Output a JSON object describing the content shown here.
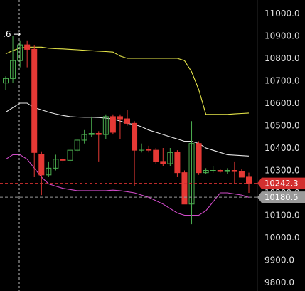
{
  "crosshair_label": ".6 →",
  "chart_data": {
    "type": "candlestick",
    "ylim": [
      9780,
      11080
    ],
    "y_ticks": [
      "11000.0",
      "10900.0",
      "10800.0",
      "10700.0",
      "10600.0",
      "10500.0",
      "10400.0",
      "10300.0",
      "10200.0",
      "10100.0",
      "10000.0",
      "9900.0",
      "9800.0"
    ],
    "y_tick_values": [
      11000,
      10900,
      10800,
      10700,
      10600,
      10500,
      10400,
      10300,
      10200,
      10100,
      10000,
      9900,
      9800
    ],
    "price_lines": [
      {
        "label": "10242.3",
        "value": 10242.3,
        "color": "#d32f2f",
        "style": "dashed"
      },
      {
        "label": "10180.5",
        "value": 10180.5,
        "color": "#9a9a9a",
        "style": "dashed"
      }
    ],
    "candles": [
      {
        "o": 10690,
        "h": 10720,
        "l": 10660,
        "c": 10710
      },
      {
        "o": 10710,
        "h": 10900,
        "l": 10690,
        "c": 10790
      },
      {
        "o": 10790,
        "h": 10880,
        "l": 10760,
        "c": 10860
      },
      {
        "o": 10860,
        "h": 10880,
        "l": 10760,
        "c": 10840
      },
      {
        "o": 10840,
        "h": 10860,
        "l": 10270,
        "c": 10380
      },
      {
        "o": 10370,
        "h": 10385,
        "l": 10190,
        "c": 10280
      },
      {
        "o": 10280,
        "h": 10340,
        "l": 10270,
        "c": 10310
      },
      {
        "o": 10310,
        "h": 10370,
        "l": 10300,
        "c": 10350
      },
      {
        "o": 10350,
        "h": 10360,
        "l": 10330,
        "c": 10345
      },
      {
        "o": 10345,
        "h": 10400,
        "l": 10330,
        "c": 10390
      },
      {
        "o": 10390,
        "h": 10440,
        "l": 10380,
        "c": 10435
      },
      {
        "o": 10435,
        "h": 10480,
        "l": 10420,
        "c": 10460
      },
      {
        "o": 10460,
        "h": 10540,
        "l": 10450,
        "c": 10465
      },
      {
        "o": 10465,
        "h": 10475,
        "l": 10340,
        "c": 10460
      },
      {
        "o": 10460,
        "h": 10550,
        "l": 10440,
        "c": 10540
      },
      {
        "o": 10540,
        "h": 10550,
        "l": 10460,
        "c": 10470
      },
      {
        "o": 10540,
        "h": 10550,
        "l": 10440,
        "c": 10530
      },
      {
        "o": 10530,
        "h": 10570,
        "l": 10500,
        "c": 10510
      },
      {
        "o": 10510,
        "h": 10520,
        "l": 10230,
        "c": 10390
      },
      {
        "o": 10390,
        "h": 10420,
        "l": 10380,
        "c": 10395
      },
      {
        "o": 10395,
        "h": 10410,
        "l": 10380,
        "c": 10390
      },
      {
        "o": 10390,
        "h": 10400,
        "l": 10330,
        "c": 10340
      },
      {
        "o": 10340,
        "h": 10400,
        "l": 10320,
        "c": 10330
      },
      {
        "o": 10330,
        "h": 10400,
        "l": 10320,
        "c": 10380
      },
      {
        "o": 10380,
        "h": 10390,
        "l": 10270,
        "c": 10290
      },
      {
        "o": 10290,
        "h": 10300,
        "l": 10150,
        "c": 10150
      },
      {
        "o": 10150,
        "h": 10520,
        "l": 10060,
        "c": 10420
      },
      {
        "o": 10420,
        "h": 10430,
        "l": 10280,
        "c": 10290
      },
      {
        "o": 10290,
        "h": 10310,
        "l": 10285,
        "c": 10300
      },
      {
        "o": 10300,
        "h": 10320,
        "l": 10290,
        "c": 10300
      },
      {
        "o": 10300,
        "h": 10305,
        "l": 10290,
        "c": 10295
      },
      {
        "o": 10295,
        "h": 10310,
        "l": 10285,
        "c": 10300
      },
      {
        "o": 10300,
        "h": 10340,
        "l": 10240,
        "c": 10295
      },
      {
        "o": 10295,
        "h": 10305,
        "l": 10280,
        "c": 10270
      },
      {
        "o": 10270,
        "h": 10290,
        "l": 10200,
        "c": 10242.3
      }
    ],
    "bands": {
      "upper": {
        "color": "#e8e84a",
        "values": [
          10820,
          10835,
          10845,
          10850,
          10850,
          10850,
          10845,
          10843,
          10842,
          10840,
          10838,
          10836,
          10834,
          10832,
          10830,
          10828,
          10810,
          10800,
          10800,
          10800,
          10800,
          10800,
          10800,
          10800,
          10800,
          10790,
          10740,
          10660,
          10550,
          10550,
          10550,
          10550,
          10552,
          10554,
          10556
        ]
      },
      "middle": {
        "color": "#e6e6e6",
        "values": [
          10560,
          10580,
          10600,
          10600,
          10580,
          10570,
          10560,
          10552,
          10545,
          10540,
          10538,
          10537,
          10537,
          10536,
          10533,
          10530,
          10520,
          10510,
          10505,
          10495,
          10480,
          10470,
          10460,
          10450,
          10440,
          10430,
          10430,
          10420,
          10400,
          10390,
          10380,
          10370,
          10368,
          10366,
          10364
        ]
      },
      "lower": {
        "color": "#d04ac8",
        "values": [
          10350,
          10370,
          10370,
          10350,
          10310,
          10270,
          10240,
          10230,
          10220,
          10215,
          10210,
          10210,
          10210,
          10210,
          10210,
          10212,
          10210,
          10205,
          10200,
          10190,
          10180,
          10165,
          10150,
          10130,
          10110,
          10100,
          10100,
          10100,
          10120,
          10160,
          10200,
          10200,
          10195,
          10190,
          10180
        ]
      }
    }
  }
}
